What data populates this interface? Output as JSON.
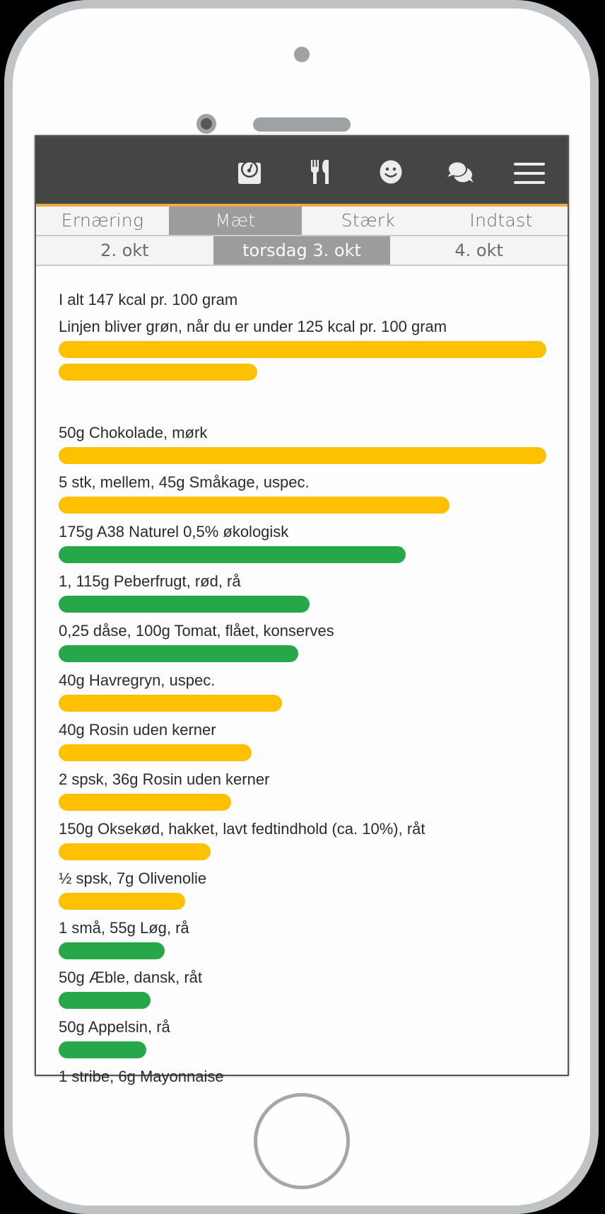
{
  "header": {
    "icons": [
      "scale-icon",
      "cutlery-icon",
      "smiley-icon",
      "chat-icon",
      "menu-icon"
    ],
    "accent_color": "#f0a945",
    "background_color": "#444643"
  },
  "tabs": [
    {
      "label": "Ernæring",
      "active": false
    },
    {
      "label": "Mæt",
      "active": true
    },
    {
      "label": "Stærk",
      "active": false
    },
    {
      "label": "Indtast",
      "active": false
    }
  ],
  "dates": [
    {
      "label": "2. okt",
      "active": false
    },
    {
      "label": "torsdag 3. okt",
      "active": true
    },
    {
      "label": "4. okt",
      "active": false
    }
  ],
  "summary": {
    "total": "I alt 147 kcal pr. 100 gram",
    "hint": "Linjen bliver grøn, når du er under 125 kcal pr. 100 gram",
    "bars": [
      {
        "width_pct": 100,
        "color": "yellow"
      },
      {
        "width_pct": 40.7,
        "color": "yellow"
      }
    ]
  },
  "colors": {
    "yellow": "#fdc101",
    "green": "#26a84a"
  },
  "items": [
    {
      "label": "50g Chokolade, mørk",
      "width_pct": 100,
      "color": "yellow"
    },
    {
      "label": "5 stk, mellem, 45g Småkage, uspec.",
      "width_pct": 80.1,
      "color": "yellow"
    },
    {
      "label": "175g A38 Naturel 0,5% økologisk",
      "width_pct": 71.2,
      "color": "green"
    },
    {
      "label": "1, 115g Peberfrugt, rød, rå",
      "width_pct": 51.4,
      "color": "green"
    },
    {
      "label": "0,25 dåse, 100g Tomat, flået, konserves",
      "width_pct": 49.1,
      "color": "green"
    },
    {
      "label": "40g Havregryn, uspec.",
      "width_pct": 45.8,
      "color": "yellow"
    },
    {
      "label": "40g Rosin uden kerner",
      "width_pct": 39.6,
      "color": "yellow"
    },
    {
      "label": "2 spsk, 36g Rosin uden kerner",
      "width_pct": 35.4,
      "color": "yellow"
    },
    {
      "label": "150g Oksekød, hakket, lavt fedtindhold (ca. 10%), råt",
      "width_pct": 31.2,
      "color": "yellow"
    },
    {
      "label": "½ spsk, 7g Olivenolie",
      "width_pct": 25.9,
      "color": "yellow"
    },
    {
      "label": "1 små, 55g Løg, rå",
      "width_pct": 21.7,
      "color": "green"
    },
    {
      "label": "50g Æble, dansk, råt",
      "width_pct": 18.8,
      "color": "green"
    },
    {
      "label": "50g Appelsin, rå",
      "width_pct": 18.0,
      "color": "green"
    },
    {
      "label": "1 stribe, 6g Mayonnaise",
      "width_pct": null,
      "color": null
    }
  ]
}
